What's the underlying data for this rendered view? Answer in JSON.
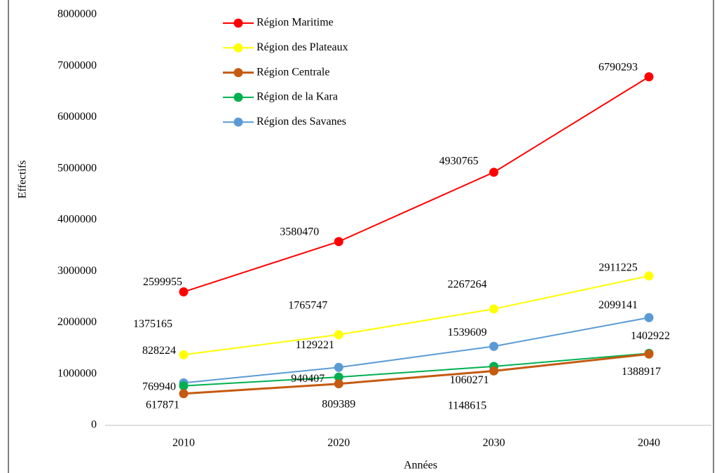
{
  "chart_data": {
    "type": "line",
    "x_label": "Années",
    "y_label": "Effectifs",
    "categories": [
      "2010",
      "2020",
      "2030",
      "2040"
    ],
    "ylim": [
      0,
      8000000
    ],
    "yticks": [
      0,
      1000000,
      2000000,
      3000000,
      4000000,
      5000000,
      6000000,
      7000000,
      8000000
    ],
    "grid": false,
    "legend": "top",
    "series": [
      {
        "name": "Région Maritime",
        "color": "#ff0000",
        "values": [
          2599955,
          3580470,
          4930765,
          6790293
        ]
      },
      {
        "name": "Région des Plateaux",
        "color": "#ffff00",
        "values": [
          1375165,
          1765747,
          2267264,
          2911225
        ]
      },
      {
        "name": "Région Centrale",
        "color": "#c55a11",
        "values": [
          617871,
          809389,
          1060271,
          1388917
        ]
      },
      {
        "name": "Région de la Kara",
        "color": "#00b050",
        "values": [
          769940,
          940407,
          1148615,
          1402922
        ]
      },
      {
        "name": "Région des Savanes",
        "color": "#5b9bd5",
        "values": [
          828224,
          1129221,
          1539609,
          2099141
        ]
      }
    ]
  }
}
